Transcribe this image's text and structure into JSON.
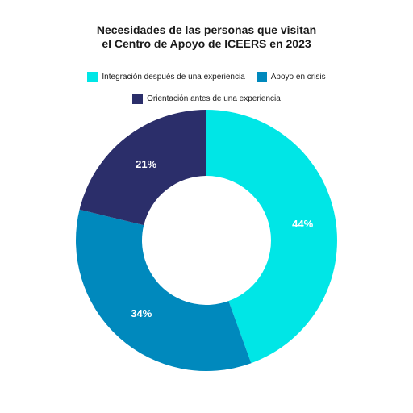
{
  "chart_data": {
    "type": "pie",
    "variant": "donut",
    "title_lines": [
      "Necesidades de las personas que visitan",
      "el Centro de Apoyo de ICEERS en 2023"
    ],
    "legend_placement": "top",
    "slices": [
      {
        "name": "Integración después de una experiencia",
        "value": 44,
        "label": "44%",
        "color": "#00e6e6"
      },
      {
        "name": "Apoyo en crisis",
        "value": 34,
        "label": "34%",
        "color": "#0089bd"
      },
      {
        "name": "Orientación antes de una experiencia",
        "value": 21,
        "label": "21%",
        "color": "#2b2e6a"
      }
    ]
  }
}
